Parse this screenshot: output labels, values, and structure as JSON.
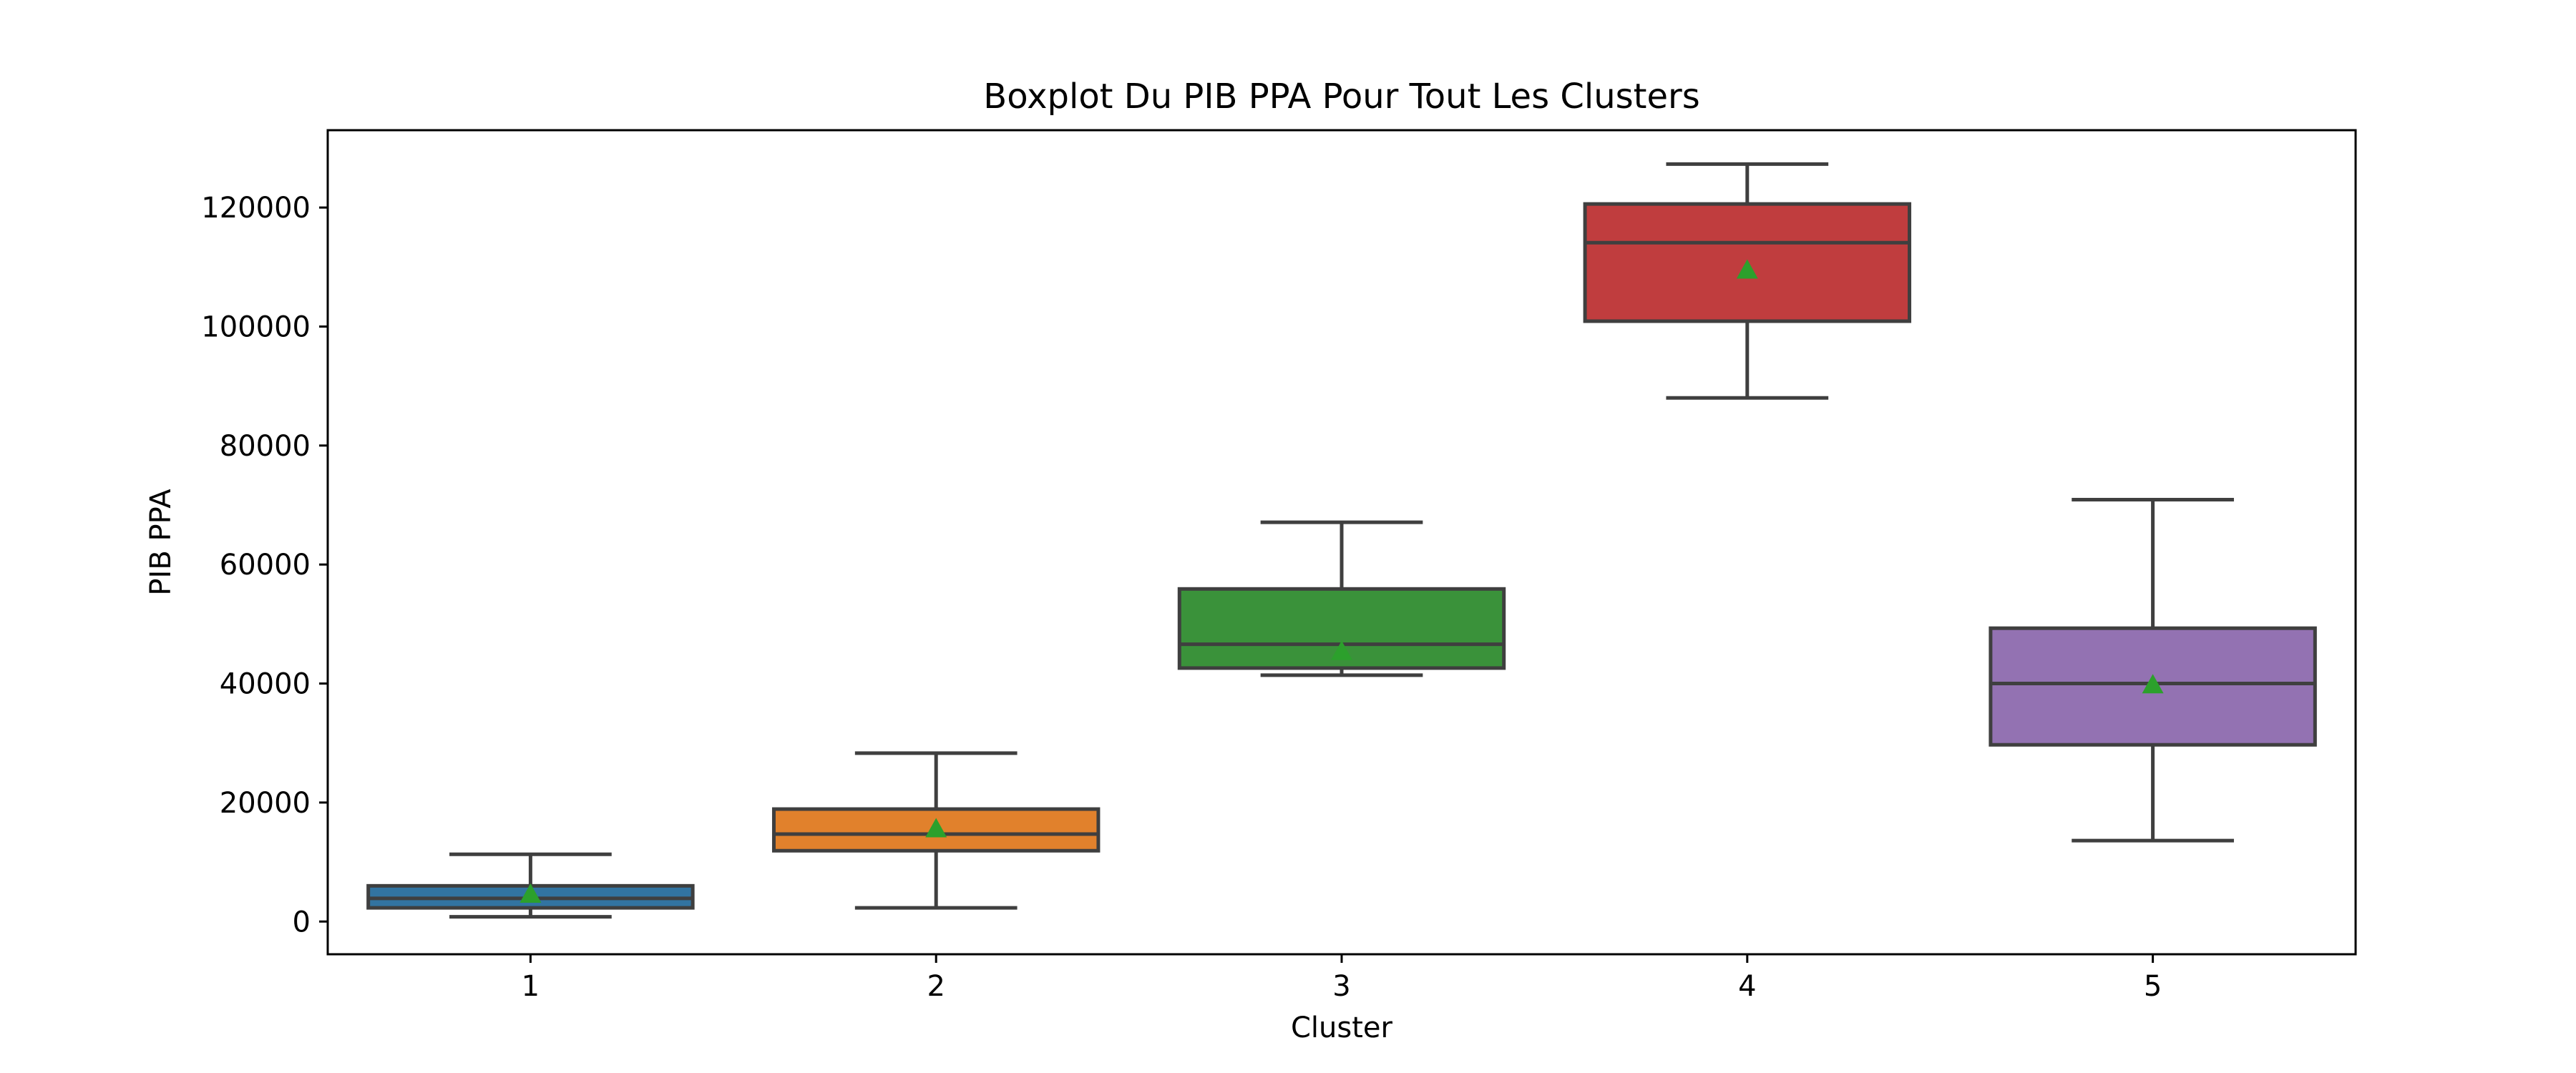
{
  "chart_data": {
    "type": "boxplot",
    "title": "Boxplot Du PIB PPA Pour Tout Les Clusters",
    "xlabel": "Cluster",
    "ylabel": "PIB PPA",
    "categories": [
      "1",
      "2",
      "3",
      "4",
      "5"
    ],
    "ylim": [
      -5500,
      133000
    ],
    "yticks": [
      0,
      20000,
      40000,
      60000,
      80000,
      100000,
      120000
    ],
    "ytick_labels": [
      "0",
      "20000",
      "40000",
      "60000",
      "80000",
      "100000",
      "120000"
    ],
    "grid": false,
    "legend": "none",
    "boxes": [
      {
        "category": "1",
        "whisker_low": 800,
        "q1": 2300,
        "median": 3900,
        "q3": 6000,
        "whisker_high": 11300,
        "mean": 4600,
        "color": "#3274a1"
      },
      {
        "category": "2",
        "whisker_low": 2300,
        "q1": 11900,
        "median": 14700,
        "q3": 18900,
        "whisker_high": 28300,
        "mean": 15600,
        "color": "#e1812c"
      },
      {
        "category": "3",
        "whisker_low": 41400,
        "q1": 42600,
        "median": 46600,
        "q3": 55900,
        "whisker_high": 67100,
        "mean": 45400,
        "color": "#3a923a"
      },
      {
        "category": "4",
        "whisker_low": 88000,
        "q1": 100900,
        "median": 114100,
        "q3": 120600,
        "whisker_high": 127300,
        "mean": 109500,
        "color": "#c03d3e"
      },
      {
        "category": "5",
        "whisker_low": 13600,
        "q1": 29700,
        "median": 40000,
        "q3": 49300,
        "whisker_high": 70900,
        "mean": 39800,
        "color": "#9372b2"
      }
    ],
    "colors": {
      "line": "#3f3f3f",
      "mean_marker": "#2ca02c",
      "axis": "#000000"
    }
  }
}
